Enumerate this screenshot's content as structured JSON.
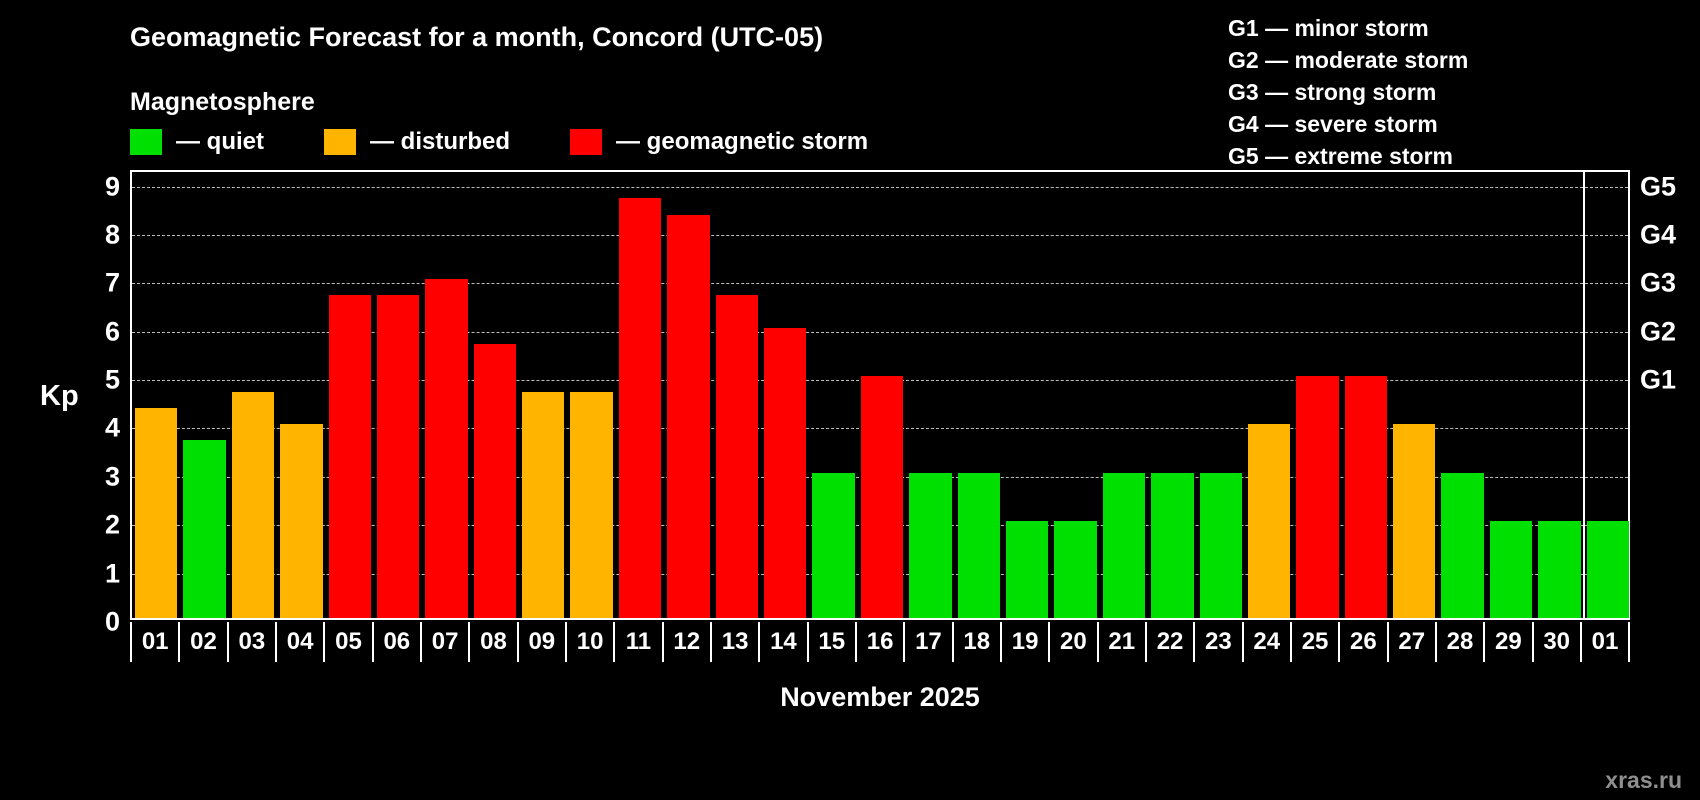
{
  "title": "Geomagnetic Forecast for a month, Concord (UTC-05)",
  "subtitle": "Magnetosphere",
  "legend": {
    "quiet": {
      "label": "— quiet",
      "color": "#00e000"
    },
    "disturbed": {
      "label": "— disturbed",
      "color": "#ffb400"
    },
    "storm": {
      "label": "— geomagnetic storm",
      "color": "#fe0000"
    }
  },
  "g_legend": [
    "G1 — minor storm",
    "G2 — moderate storm",
    "G3 — strong storm",
    "G4 — severe storm",
    "G5 — extreme storm"
  ],
  "chart_data": {
    "type": "bar",
    "title": "Geomagnetic Forecast for a month, Concord (UTC-05)",
    "xlabel": "November 2025",
    "ylabel": "Kp",
    "ylim": [
      0,
      9.3
    ],
    "y_ticks": [
      0,
      1,
      2,
      3,
      4,
      5,
      6,
      7,
      8,
      9
    ],
    "grid": "dashed-horizontal",
    "categories": [
      "01",
      "02",
      "03",
      "04",
      "05",
      "06",
      "07",
      "08",
      "09",
      "10",
      "11",
      "12",
      "13",
      "14",
      "15",
      "16",
      "17",
      "18",
      "19",
      "20",
      "21",
      "22",
      "23",
      "24",
      "25",
      "26",
      "27",
      "28",
      "29",
      "30",
      "01"
    ],
    "values": [
      4.33,
      3.67,
      4.67,
      4.0,
      6.67,
      6.67,
      7.0,
      5.67,
      4.67,
      4.67,
      8.67,
      8.33,
      6.67,
      6.0,
      3.0,
      5.0,
      3.0,
      3.0,
      2.0,
      2.0,
      3.0,
      3.0,
      3.0,
      4.0,
      5.0,
      5.0,
      4.0,
      3.0,
      2.0,
      2.0,
      2.0
    ],
    "statuses": [
      "disturbed",
      "quiet",
      "disturbed",
      "disturbed",
      "storm",
      "storm",
      "storm",
      "storm",
      "disturbed",
      "disturbed",
      "storm",
      "storm",
      "storm",
      "storm",
      "quiet",
      "storm",
      "quiet",
      "quiet",
      "quiet",
      "quiet",
      "quiet",
      "quiet",
      "quiet",
      "disturbed",
      "storm",
      "storm",
      "disturbed",
      "quiet",
      "quiet",
      "quiet",
      "quiet"
    ],
    "status_colors": {
      "quiet": "#00e000",
      "disturbed": "#ffb400",
      "storm": "#fe0000"
    },
    "right_axis": {
      "labels": [
        "G1",
        "G2",
        "G3",
        "G4",
        "G5"
      ],
      "values": [
        5,
        6,
        7,
        8,
        9
      ]
    },
    "month_separator_after_index": 29
  },
  "footer": {
    "watermark": "xras.ru"
  }
}
